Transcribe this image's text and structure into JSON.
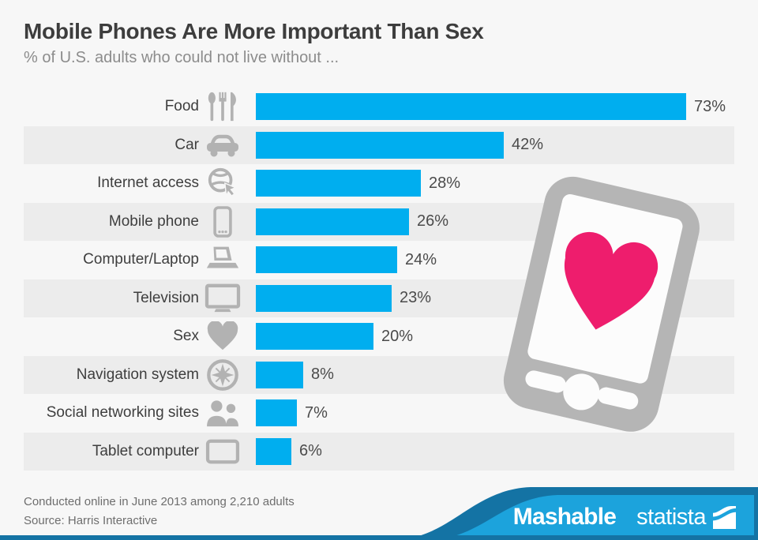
{
  "header": {
    "title": "Mobile Phones Are More Important Than Sex",
    "subtitle": "% of U.S. adults who could not live without ..."
  },
  "chart_data": {
    "type": "bar",
    "orientation": "horizontal",
    "unit": "%",
    "categories": [
      "Food",
      "Car",
      "Internet access",
      "Mobile phone",
      "Computer/Laptop",
      "Television",
      "Sex",
      "Navigation system",
      "Social networking sites",
      "Tablet computer"
    ],
    "values": [
      73,
      42,
      28,
      26,
      24,
      23,
      20,
      8,
      7,
      6
    ],
    "value_labels": [
      "73%",
      "42%",
      "28%",
      "26%",
      "24%",
      "23%",
      "20%",
      "8%",
      "7%",
      "6%"
    ],
    "icons": [
      "cutlery-icon",
      "car-icon",
      "globe-cursor-icon",
      "mobile-phone-icon",
      "laptop-icon",
      "tv-icon",
      "heart-icon",
      "compass-icon",
      "people-icon",
      "tablet-icon"
    ],
    "bar_color": "#00aeef",
    "row_stripe_color": "#ececec",
    "icon_color": "#b2b2b2",
    "xlim": [
      0,
      80
    ],
    "grid": false,
    "legend": false
  },
  "illustration": {
    "name": "phone-with-heart",
    "phone_color": "#b5b5b5",
    "screen_color": "#fcfcfc",
    "heart_color": "#ee1d6d"
  },
  "footer": {
    "note_line1": "Conducted online in June 2013 among 2,210 adults",
    "note_line2": "Source: Harris Interactive",
    "brand_mashable": "Mashable",
    "brand_statista": "statista",
    "wave_light_color": "#1ca3dc",
    "wave_dark_color": "#1473a4"
  }
}
